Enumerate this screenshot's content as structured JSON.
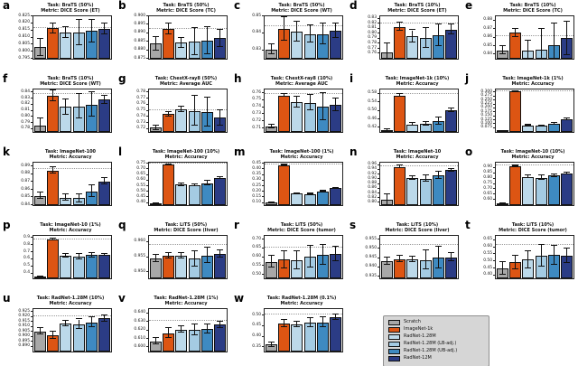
{
  "figure_title": "Pretraining comparison bar charts",
  "legend": {
    "entries": [
      {
        "label": "Scratch",
        "color": "#a8a8a8"
      },
      {
        "label": "ImageNet-1k",
        "color": "#dd5513"
      },
      {
        "label": "RadNet-1.28M",
        "color": "#bcd9ea"
      },
      {
        "label": "RadNet-1.28M (LB-adj.)",
        "color": "#a4cbe3"
      },
      {
        "label": "RadNet-1.28M (UB-adj.)",
        "color": "#3e8ac1"
      },
      {
        "label": "RadNet-12M",
        "color": "#2b3c85"
      }
    ]
  },
  "chart_data": [
    {
      "panel": "a",
      "type": "bar",
      "title": "Task: BraTS (50%)",
      "subtitle": "Metric: DICE Score (ET)",
      "categories": [
        "Scratch",
        "ImageNet-1k",
        "RadNet-1.28M",
        "RadNet-1.28M (LB-adj.)",
        "RadNet-1.28M (UB-adj.)",
        "RadNet-12M"
      ],
      "values": [
        0.803,
        0.8165,
        0.8135,
        0.8135,
        0.8145,
        0.816
      ],
      "errors": [
        0.006,
        0.0035,
        0.004,
        0.009,
        0.008,
        0.004
      ],
      "ylim": [
        0.795,
        0.825
      ],
      "yticks": [
        0.795,
        0.8,
        0.805,
        0.81,
        0.815,
        0.82,
        0.825
      ],
      "decimals": 3,
      "ref_line": 0.8165
    },
    {
      "panel": "b",
      "type": "bar",
      "title": "Task: BraTS (50%)",
      "subtitle": "Metric: DICE Score (TC)",
      "values": [
        0.884,
        0.8925,
        0.8845,
        0.885,
        0.8855,
        0.887
      ],
      "errors": [
        0.004,
        0.003,
        0.003,
        0.008,
        0.008,
        0.005
      ],
      "ylim": [
        0.875,
        0.9
      ],
      "yticks": [
        0.875,
        0.88,
        0.885,
        0.89,
        0.895,
        0.9
      ],
      "decimals": 3,
      "ref_line": 0.8925
    },
    {
      "panel": "c",
      "type": "bar",
      "title": "Task: BraTS (50%)",
      "subtitle": "Metric: DICE Score (WT)",
      "values": [
        0.8305,
        0.8425,
        0.841,
        0.8395,
        0.8395,
        0.8415
      ],
      "errors": [
        0.003,
        0.007,
        0.006,
        0.005,
        0.006,
        0.004
      ],
      "ylim": [
        0.825,
        0.85
      ],
      "yticks": [
        0.83,
        0.84,
        0.85
      ],
      "decimals": 2,
      "ref_line": 0.844
    },
    {
      "panel": "d",
      "type": "bar",
      "title": "Task: BraTS (10%)",
      "subtitle": "Metric: DICE Score (ET)",
      "values": [
        0.762,
        0.814,
        0.795,
        0.792,
        0.797,
        0.808
      ],
      "errors": [
        0.018,
        0.008,
        0.012,
        0.02,
        0.022,
        0.01
      ],
      "ylim": [
        0.75,
        0.835
      ],
      "yticks": [
        0.76,
        0.77,
        0.78,
        0.79,
        0.8,
        0.81,
        0.82,
        0.83
      ],
      "decimals": 2,
      "ref_line": 0.82
    },
    {
      "panel": "e",
      "type": "bar",
      "title": "Task: BraTS (10%)",
      "subtitle": "Metric: DICE Score (TC)",
      "values": [
        0.845,
        0.8655,
        0.8445,
        0.8455,
        0.851,
        0.859
      ],
      "errors": [
        0.005,
        0.005,
        0.012,
        0.025,
        0.025,
        0.02
      ],
      "ylim": [
        0.835,
        0.885
      ],
      "yticks": [
        0.84,
        0.85,
        0.86,
        0.87,
        0.88
      ],
      "decimals": 2,
      "ref_line": 0.862
    },
    {
      "panel": "f",
      "type": "bar",
      "title": "Task: BraTS (10%)",
      "subtitle": "Metric: DICE Score (WT)",
      "values": [
        0.785,
        0.834,
        0.816,
        0.817,
        0.82,
        0.828
      ],
      "errors": [
        0.013,
        0.009,
        0.012,
        0.02,
        0.02,
        0.007
      ],
      "ylim": [
        0.775,
        0.845
      ],
      "yticks": [
        0.78,
        0.79,
        0.8,
        0.81,
        0.82,
        0.83,
        0.84
      ],
      "decimals": 2,
      "ref_line": 0.837
    },
    {
      "panel": "g",
      "type": "bar",
      "title": "Task: ChestX-ray8 (50%)",
      "subtitle": "Metric: Average AUC",
      "values": [
        0.722,
        0.7445,
        0.7525,
        0.75,
        0.7475,
        0.7385
      ],
      "errors": [
        0.004,
        0.0035,
        0.004,
        0.024,
        0.024,
        0.013
      ],
      "ylim": [
        0.715,
        0.785
      ],
      "yticks": [
        0.72,
        0.73,
        0.74,
        0.75,
        0.76,
        0.77,
        0.78
      ],
      "decimals": 2,
      "ref_line": 0.7515
    },
    {
      "panel": "h",
      "type": "bar",
      "title": "Task: ChestX-ray8 (10%)",
      "subtitle": "Metric: Average AUC",
      "values": [
        0.7125,
        0.7565,
        0.747,
        0.7465,
        0.741,
        0.7435
      ],
      "errors": [
        0.0025,
        0.002,
        0.008,
        0.011,
        0.019,
        0.009
      ],
      "ylim": [
        0.705,
        0.765
      ],
      "yticks": [
        0.71,
        0.72,
        0.73,
        0.74,
        0.75,
        0.76
      ],
      "decimals": 2,
      "ref_line": 0.758
    },
    {
      "panel": "i",
      "type": "bar",
      "title": "Task: ImageNet-1k (10%)",
      "subtitle": "Metric: Accuracy",
      "values": [
        0.408,
        0.572,
        0.436,
        0.438,
        0.452,
        0.503
      ],
      "errors": [
        0.006,
        0.008,
        0.008,
        0.01,
        0.018,
        0.008
      ],
      "ylim": [
        0.4,
        0.6
      ],
      "yticks": [
        0.42,
        0.46,
        0.5,
        0.54,
        0.58
      ],
      "decimals": 2,
      "ref_line": 0.578
    },
    {
      "panel": "j",
      "type": "bar",
      "title": "Task: ImageNet-1k (1%)",
      "subtitle": "Metric: Accuracy",
      "values": [
        0.053,
        0.306,
        0.091,
        0.089,
        0.101,
        0.131
      ],
      "errors": [
        0.002,
        0.003,
        0.003,
        0.004,
        0.004,
        0.004
      ],
      "ylim": [
        0.05,
        0.32
      ],
      "yticks": [
        0.075,
        0.1,
        0.125,
        0.15,
        0.175,
        0.2,
        0.225,
        0.25,
        0.275,
        0.3
      ],
      "decimals": 3,
      "ref_line": 0.308
    },
    {
      "panel": "k",
      "type": "bar",
      "title": "Task: ImageNet-100",
      "subtitle": "Metric: Accuracy",
      "values": [
        0.852,
        0.885,
        0.8495,
        0.849,
        0.858,
        0.871
      ],
      "errors": [
        0.004,
        0.004,
        0.004,
        0.005,
        0.008,
        0.004
      ],
      "ylim": [
        0.84,
        0.895
      ],
      "yticks": [
        0.84,
        0.85,
        0.86,
        0.87,
        0.88,
        0.89
      ],
      "decimals": 2,
      "ref_line": 0.887
    },
    {
      "panel": "l",
      "type": "bar",
      "title": "Task: ImageNet-100 (10%)",
      "subtitle": "Metric: Accuracy",
      "values": [
        0.392,
        0.742,
        0.563,
        0.558,
        0.578,
        0.624
      ],
      "errors": [
        0.004,
        0.004,
        0.01,
        0.012,
        0.02,
        0.006
      ],
      "ylim": [
        0.38,
        0.76
      ],
      "yticks": [
        0.4,
        0.45,
        0.5,
        0.55,
        0.6,
        0.65,
        0.7,
        0.75
      ],
      "decimals": 2,
      "ref_line": 0.748
    },
    {
      "panel": "m",
      "type": "bar",
      "title": "Task: ImageNet-100 (1%)",
      "subtitle": "Metric: Accuracy",
      "values": [
        0.102,
        0.438,
        0.183,
        0.181,
        0.205,
        0.232
      ],
      "errors": [
        0.003,
        0.004,
        0.005,
        0.005,
        0.007,
        0.005
      ],
      "ylim": [
        0.08,
        0.46
      ],
      "yticks": [
        0.1,
        0.15,
        0.2,
        0.25,
        0.3,
        0.35,
        0.4,
        0.45
      ],
      "decimals": 2,
      "ref_line": 0.442
    },
    {
      "panel": "n",
      "type": "bar",
      "title": "Task: ImageNet-10",
      "subtitle": "Metric: Accuracy",
      "values": [
        0.812,
        0.952,
        0.905,
        0.902,
        0.916,
        0.938
      ],
      "errors": [
        0.024,
        0.006,
        0.009,
        0.013,
        0.015,
        0.006
      ],
      "ylim": [
        0.79,
        0.97
      ],
      "yticks": [
        0.8,
        0.82,
        0.84,
        0.86,
        0.88,
        0.9,
        0.92,
        0.94,
        0.96
      ],
      "decimals": 2,
      "ref_line": 0.956
    },
    {
      "panel": "o",
      "type": "bar",
      "title": "Task: ImageNet-10 (10%)",
      "subtitle": "Metric: Accuracy",
      "values": [
        0.565,
        0.918,
        0.815,
        0.808,
        0.828,
        0.845
      ],
      "errors": [
        0.005,
        0.005,
        0.012,
        0.022,
        0.012,
        0.009
      ],
      "ylim": [
        0.55,
        0.95
      ],
      "yticks": [
        0.6,
        0.65,
        0.7,
        0.75,
        0.8,
        0.85,
        0.9
      ],
      "decimals": 2,
      "ref_line": 0.922
    },
    {
      "panel": "p",
      "type": "bar",
      "title": "Task: ImageNet-10 (1%)",
      "subtitle": "Metric: Accuracy",
      "values": [
        0.352,
        0.878,
        0.652,
        0.64,
        0.658,
        0.663
      ],
      "errors": [
        0.008,
        0.014,
        0.022,
        0.04,
        0.032,
        0.012
      ],
      "ylim": [
        0.33,
        0.93
      ],
      "yticks": [
        0.4,
        0.5,
        0.6,
        0.7,
        0.8,
        0.9
      ],
      "decimals": 1,
      "ref_line": 0.885
    },
    {
      "panel": "q",
      "type": "bar",
      "title": "Task: LiTS (50%)",
      "subtitle": "Metric: DICE Score (liver)",
      "values": [
        0.9545,
        0.9555,
        0.9555,
        0.9545,
        0.9555,
        0.956
      ],
      "errors": [
        0.0012,
        0.0008,
        0.0008,
        0.0025,
        0.0025,
        0.0012
      ],
      "ylim": [
        0.948,
        0.962
      ],
      "yticks": [
        0.95,
        0.955,
        0.96
      ],
      "decimals": 3,
      "ref_line": 0.959
    },
    {
      "panel": "r",
      "type": "bar",
      "title": "Task: LiTS (50%)",
      "subtitle": "Metric: DICE Score (tumor)",
      "values": [
        0.574,
        0.585,
        0.582,
        0.602,
        0.612,
        0.618
      ],
      "errors": [
        0.035,
        0.05,
        0.05,
        0.06,
        0.055,
        0.04
      ],
      "ylim": [
        0.48,
        0.72
      ],
      "yticks": [
        0.5,
        0.55,
        0.6,
        0.65,
        0.7
      ],
      "decimals": 2,
      "ref_line": 0.655
    },
    {
      "panel": "s",
      "type": "bar",
      "title": "Task: LiTS (10%)",
      "subtitle": "Metric: DICE Score (liver)",
      "values": [
        0.9435,
        0.9445,
        0.9442,
        0.944,
        0.9452,
        0.9455
      ],
      "errors": [
        0.002,
        0.0015,
        0.0015,
        0.005,
        0.006,
        0.002
      ],
      "ylim": [
        0.934,
        0.957
      ],
      "yticks": [
        0.935,
        0.94,
        0.945,
        0.95,
        0.955
      ],
      "decimals": 3,
      "ref_line": 0.952
    },
    {
      "panel": "t",
      "type": "bar",
      "title": "Task: LiTS (10%)",
      "subtitle": "Metric: DICE Score (tumor)",
      "values": [
        0.452,
        0.492,
        0.513,
        0.541,
        0.543,
        0.54
      ],
      "errors": [
        0.045,
        0.05,
        0.06,
        0.075,
        0.065,
        0.05
      ],
      "ylim": [
        0.38,
        0.68
      ],
      "yticks": [
        0.4,
        0.45,
        0.5,
        0.55,
        0.6,
        0.65
      ],
      "decimals": 2,
      "ref_line": 0.615
    },
    {
      "panel": "u",
      "type": "bar",
      "title": "Task: RadNet-1.28M (10%)",
      "subtitle": "Metric: Accuracy",
      "values": [
        0.9055,
        0.9015,
        0.9135,
        0.9125,
        0.9145,
        0.9185
      ],
      "errors": [
        0.003,
        0.004,
        0.003,
        0.005,
        0.005,
        0.003
      ],
      "ylim": [
        0.885,
        0.928
      ],
      "yticks": [
        0.89,
        0.895,
        0.9,
        0.905,
        0.91,
        0.915,
        0.92,
        0.925
      ],
      "decimals": 3,
      "ref_line": 0.921
    },
    {
      "panel": "v",
      "type": "bar",
      "title": "Task: RadNet-1.28M (1%)",
      "subtitle": "Metric: Accuracy",
      "values": [
        0.607,
        0.6165,
        0.621,
        0.6205,
        0.6215,
        0.6265
      ],
      "errors": [
        0.004,
        0.006,
        0.004,
        0.006,
        0.005,
        0.004
      ],
      "ylim": [
        0.595,
        0.645
      ],
      "yticks": [
        0.6,
        0.61,
        0.62,
        0.63,
        0.64
      ],
      "decimals": 3,
      "ref_line": 0.631
    },
    {
      "panel": "w",
      "type": "bar",
      "title": "Task: RadNet-1.28M (0.1%)",
      "subtitle": "Metric: Accuracy",
      "values": [
        0.362,
        0.462,
        0.459,
        0.465,
        0.468,
        0.492
      ],
      "errors": [
        0.012,
        0.016,
        0.013,
        0.022,
        0.022,
        0.013
      ],
      "ylim": [
        0.33,
        0.53
      ],
      "yticks": [
        0.35,
        0.4,
        0.45,
        0.5
      ],
      "decimals": 2,
      "ref_line": 0.503
    }
  ]
}
